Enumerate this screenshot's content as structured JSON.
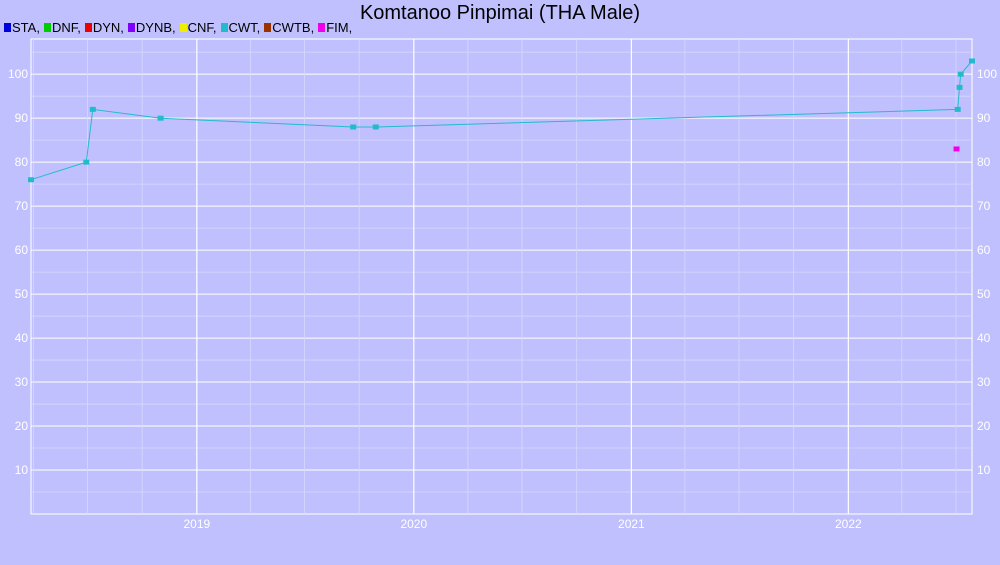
{
  "chart_data": {
    "type": "line",
    "title": "Komtanoo Pinpimai (THA Male)",
    "legend": [
      {
        "label": "STA,",
        "color": "#0000dd"
      },
      {
        "label": "DNF,",
        "color": "#00cc00"
      },
      {
        "label": "DYN,",
        "color": "#ee0000"
      },
      {
        "label": "DYNB,",
        "color": "#7f00ff"
      },
      {
        "label": "CNF,",
        "color": "#eeee00"
      },
      {
        "label": "CWT,",
        "color": "#22bbcc"
      },
      {
        "label": "CWTB,",
        "color": "#993300"
      },
      {
        "label": "FIM,",
        "color": "#ee00ee"
      }
    ],
    "legend_placement": "top-left",
    "grid": true,
    "ylim": [
      0,
      108
    ],
    "xlim": [
      "2018-03-28",
      "2022-07-28"
    ],
    "x_tick_labels": [
      "2019",
      "2020",
      "2021",
      "2022"
    ],
    "y_tick_labels": [
      "10",
      "20",
      "30",
      "40",
      "50",
      "60",
      "70",
      "80",
      "90",
      "100"
    ],
    "series": [
      {
        "name": "CWT,",
        "color": "#22bbcc",
        "line": true,
        "points": [
          {
            "x": "2018-03-28",
            "y": 76
          },
          {
            "x": "2018-06-29",
            "y": 80
          },
          {
            "x": "2018-07-10",
            "y": 92
          },
          {
            "x": "2018-11-01",
            "y": 90
          },
          {
            "x": "2019-09-21",
            "y": 88
          },
          {
            "x": "2019-10-29",
            "y": 88
          },
          {
            "x": "2022-07-04",
            "y": 92
          },
          {
            "x": "2022-07-07",
            "y": 97
          },
          {
            "x": "2022-07-09",
            "y": 100
          },
          {
            "x": "2022-07-28",
            "y": 103
          }
        ]
      },
      {
        "name": "FIM,",
        "color": "#ee00ee",
        "line": false,
        "points": [
          {
            "x": "2022-07-02",
            "y": 83
          }
        ]
      }
    ]
  }
}
